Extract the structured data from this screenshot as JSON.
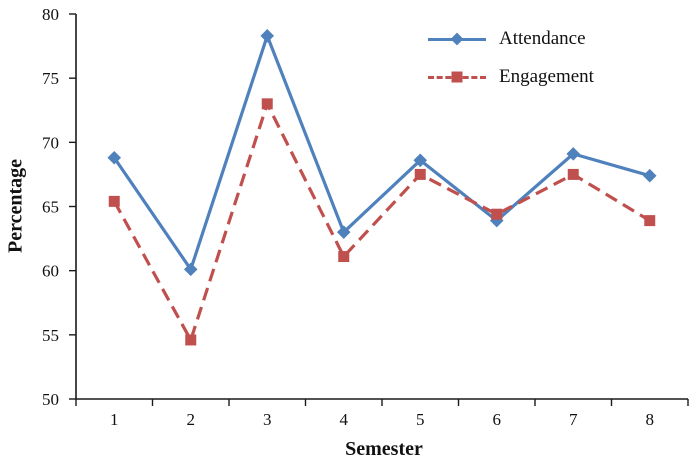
{
  "chart_data": {
    "type": "line",
    "title": "",
    "xlabel": "Semester",
    "ylabel": "Percentage",
    "categories": [
      "1",
      "2",
      "3",
      "4",
      "5",
      "6",
      "7",
      "8"
    ],
    "ylim": [
      50,
      80
    ],
    "yticks": [
      50,
      55,
      60,
      65,
      70,
      75,
      80
    ],
    "grid": false,
    "legend_position": "top-right",
    "series": [
      {
        "name": "Attendance",
        "color": "#4F81BD",
        "line_style": "solid",
        "marker": "diamond",
        "values": [
          68.8,
          60.1,
          78.3,
          63.0,
          68.6,
          63.9,
          69.1,
          67.4
        ]
      },
      {
        "name": "Engagement",
        "color": "#C0504D",
        "line_style": "dashed",
        "marker": "square",
        "values": [
          65.4,
          54.6,
          73.0,
          61.1,
          67.5,
          64.4,
          67.5,
          63.9
        ]
      }
    ]
  }
}
